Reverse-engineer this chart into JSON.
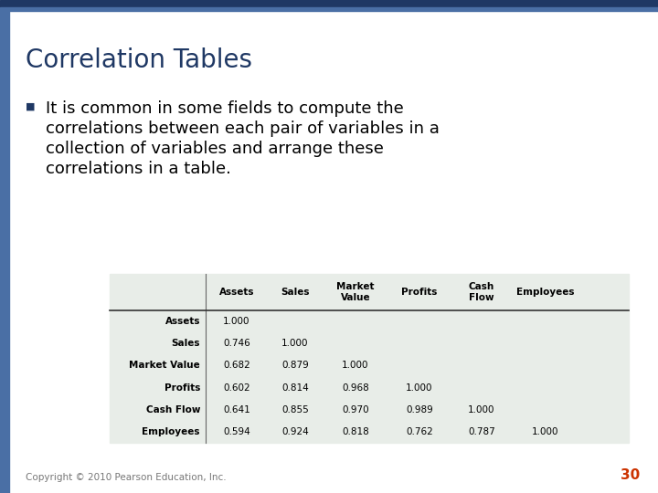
{
  "title": "Correlation Tables",
  "bullet_text_lines": [
    "It is common in some fields to compute the",
    "correlations between each pair of variables in a",
    "collection of variables and arrange these",
    "correlations in a table."
  ],
  "title_color": "#1F3864",
  "title_fontsize": 20,
  "bullet_fontsize": 13,
  "bullet_color": "#000000",
  "bullet_marker_color": "#1F3864",
  "bg_color": "#FFFFFF",
  "header_bar_color": "#1F3864",
  "header_bar2_color": "#4A6FA5",
  "left_bar_color": "#4A6FA5",
  "footer_text": "Copyright © 2010 Pearson Education, Inc.",
  "page_number": "30",
  "footer_color": "#CC3300",
  "footer_fontsize": 7.5,
  "page_number_fontsize": 11,
  "table_bg": "#E8EDE8",
  "col_headers": [
    "",
    "Assets",
    "Sales",
    "Market\nValue",
    "Profits",
    "Cash\nFlow",
    "Employees"
  ],
  "row_headers": [
    "Assets",
    "Sales",
    "Market Value",
    "Profits",
    "Cash Flow",
    "Employees"
  ],
  "table_data": [
    [
      "1.000",
      "",
      "",
      "",
      "",
      ""
    ],
    [
      "0.746",
      "1.000",
      "",
      "",
      "",
      ""
    ],
    [
      "0.682",
      "0.879",
      "1.000",
      "",
      "",
      ""
    ],
    [
      "0.602",
      "0.814",
      "0.968",
      "1.000",
      "",
      ""
    ],
    [
      "0.641",
      "0.855",
      "0.970",
      "0.989",
      "1.000",
      ""
    ],
    [
      "0.594",
      "0.924",
      "0.818",
      "0.762",
      "0.787",
      "1.000"
    ]
  ]
}
